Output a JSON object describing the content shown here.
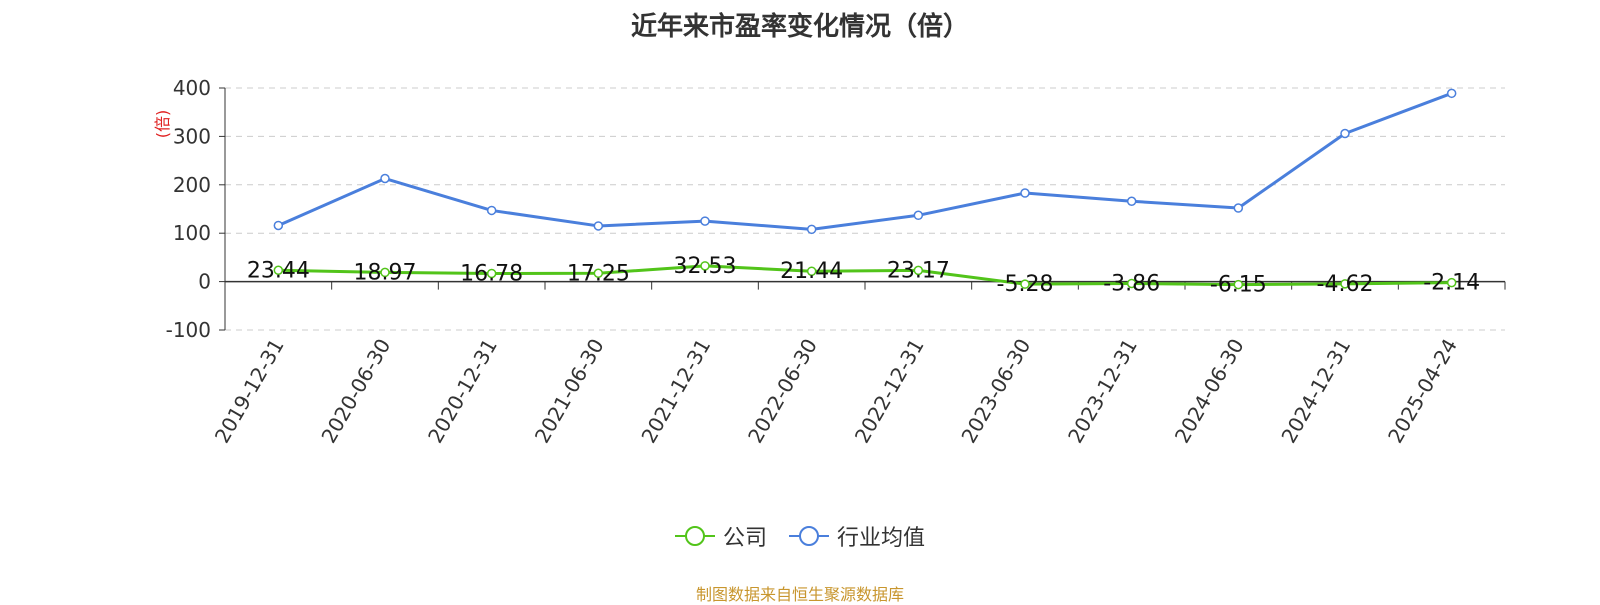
{
  "chart_data": {
    "type": "line",
    "title": "近年来市盈率变化情况（倍）",
    "ylabel": "(倍)",
    "xlabel": "",
    "categories": [
      "2019-12-31",
      "2020-06-30",
      "2020-12-31",
      "2021-06-30",
      "2021-12-31",
      "2022-06-30",
      "2022-12-31",
      "2023-06-30",
      "2023-12-31",
      "2024-06-30",
      "2024-12-31",
      "2025-04-24"
    ],
    "ylim": [
      -100,
      400
    ],
    "yticks": [
      "-100",
      "0",
      "100",
      "200",
      "300",
      "400"
    ],
    "grid": true,
    "legend_position": "bottom",
    "series": [
      {
        "name": "公司",
        "color": "#52c41a",
        "values": [
          23.44,
          18.97,
          16.78,
          17.25,
          32.53,
          21.44,
          23.17,
          -5.28,
          -3.86,
          -6.15,
          -4.62,
          -2.14
        ],
        "labels": [
          "23.44",
          "18.97",
          "16.78",
          "17.25",
          "32.53",
          "21.44",
          "23.17",
          "-5.28",
          "-3.86",
          "-6.15",
          "-4.62",
          "-2.14"
        ]
      },
      {
        "name": "行业均值",
        "color": "#4a7fdc",
        "values": [
          116,
          213,
          147,
          115,
          125,
          108,
          137,
          183,
          166,
          152,
          306,
          389
        ]
      }
    ]
  },
  "legend": {
    "company": "公司",
    "industry": "行业均值"
  },
  "source_note": "制图数据来自恒生聚源数据库"
}
